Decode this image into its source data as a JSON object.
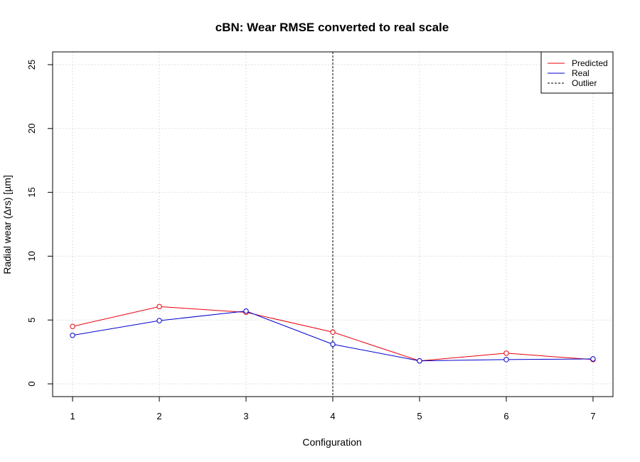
{
  "chart_data": {
    "type": "line",
    "title": "cBN: Wear RMSE converted to real scale",
    "xlabel": "Configuration",
    "ylabel": "Radial wear (Δrs) [µm]",
    "x": [
      1,
      2,
      3,
      4,
      5,
      6,
      7
    ],
    "x_ticks": [
      "1",
      "2",
      "3",
      "4",
      "5",
      "6",
      "7"
    ],
    "y_ticks": [
      "0",
      "5",
      "10",
      "15",
      "20",
      "25"
    ],
    "xlim": [
      0.77,
      7.23
    ],
    "ylim": [
      -1,
      26
    ],
    "grid": true,
    "legend_position": "top-right",
    "series": [
      {
        "name": "Predicted",
        "color": "#e8000b",
        "values": [
          4.5,
          6.05,
          5.6,
          4.05,
          1.8,
          2.4,
          1.9
        ],
        "style": "solid",
        "markers": "open-circle"
      },
      {
        "name": "Real",
        "color": "#0000cc",
        "values": [
          3.8,
          4.95,
          5.7,
          3.1,
          1.8,
          1.9,
          1.95
        ],
        "style": "solid",
        "markers": "open-circle"
      }
    ],
    "reference_lines": [
      {
        "name": "Outlier",
        "orientation": "vertical",
        "x": 4,
        "style": "dashed",
        "color": "#000000"
      }
    ]
  }
}
